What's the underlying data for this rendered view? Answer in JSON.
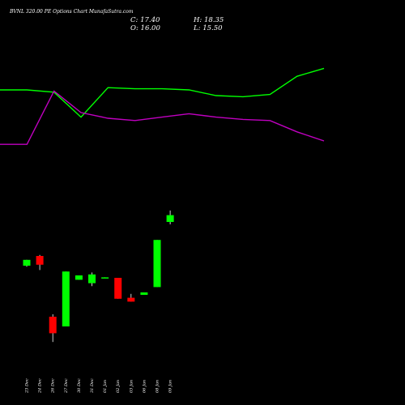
{
  "chart_data": {
    "type": "candlestick",
    "title": "BVNL 320.00 PE Options Chart MunafaSutra.com",
    "stats": {
      "close": "C: 17.40",
      "open": "O: 16.00",
      "high": "H: 18.35",
      "low": "L: 15.50"
    },
    "categories": [
      "23 Dec",
      "24 Dec",
      "26 Dec",
      "27 Dec",
      "30 Dec",
      "31 Dec",
      "01 Jan",
      "02 Jan",
      "03 Jan",
      "06 Jan",
      "08 Jan",
      "09 Jan"
    ],
    "candles": [
      {
        "open": 7.0,
        "close": 8.2,
        "high": 8.2,
        "low": 6.8
      },
      {
        "open": 9.0,
        "close": 7.2,
        "high": 9.2,
        "low": 6.1
      },
      {
        "open": -3.5,
        "close": -6.9,
        "high": -3.0,
        "low": -8.7
      },
      {
        "open": -5.5,
        "close": 5.8,
        "high": 5.8,
        "low": -5.5
      },
      {
        "open": 4.1,
        "close": 5.0,
        "high": 5.0,
        "low": 4.1
      },
      {
        "open": 3.4,
        "close": 5.2,
        "high": 5.6,
        "low": 2.8
      },
      {
        "open": 4.5,
        "close": 4.6,
        "high": 4.6,
        "low": 4.5
      },
      {
        "open": 4.5,
        "close": 0.2,
        "high": 4.5,
        "low": 0.2
      },
      {
        "open": 0.4,
        "close": -0.4,
        "high": 1.2,
        "low": -0.4
      },
      {
        "open": 1.0,
        "close": 1.5,
        "high": 1.5,
        "low": 1.0
      },
      {
        "open": 2.6,
        "close": 12.3,
        "high": 12.3,
        "low": 2.6
      },
      {
        "open": 16.0,
        "close": 17.4,
        "high": 18.35,
        "low": 15.5
      }
    ],
    "upper_line": {
      "color": "#00ff00",
      "values": [
        0.85,
        0.85,
        0.83,
        0.61,
        0.87,
        0.86,
        0.86,
        0.85,
        0.8,
        0.79,
        0.81,
        0.97,
        1.04
      ]
    },
    "lower_line": {
      "color": "#c000c0",
      "values": [
        0.37,
        0.37,
        0.84,
        0.65,
        0.6,
        0.58,
        0.61,
        0.64,
        0.61,
        0.59,
        0.58,
        0.48,
        0.4
      ]
    },
    "colors": {
      "up": "#00ff00",
      "down": "#ff0000",
      "background": "#000000",
      "text": "#ffffff"
    }
  }
}
